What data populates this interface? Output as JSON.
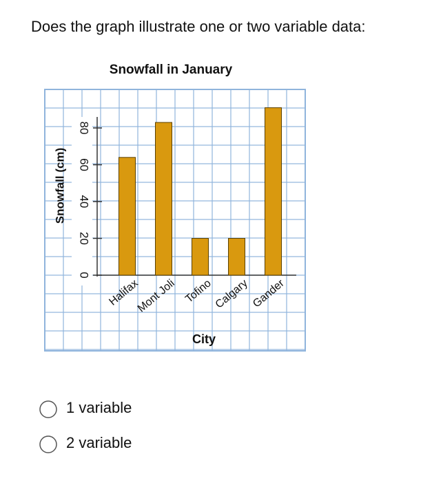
{
  "question": "Does the graph illustrate one or two variable data:",
  "chart_data": {
    "type": "bar",
    "title": "Snowfall in January",
    "x_label": "City",
    "y_label": "Snowfall (cm)",
    "categories": [
      "Halifax",
      "Mont Joli",
      "Tofino",
      "Calgary",
      "Gander"
    ],
    "values": [
      64,
      83,
      20,
      20,
      91
    ],
    "color": "#d9990f",
    "ylim": [
      -40,
      100
    ],
    "yticks": [
      0,
      20,
      40,
      60,
      80
    ],
    "grid": true
  },
  "options": [
    "1 variable",
    "2 variable"
  ]
}
